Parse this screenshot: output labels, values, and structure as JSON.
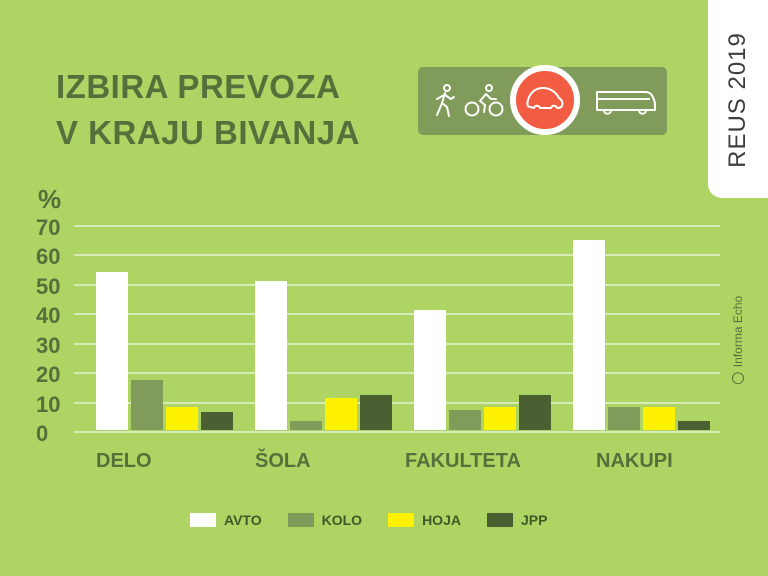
{
  "title": {
    "line1": "IZBIRA PREVOZA",
    "line2": "V KRAJU BIVANJA"
  },
  "header_icons": [
    "walking-icon",
    "bicycle-icon",
    "car-icon",
    "bus-icon"
  ],
  "badge": {
    "text": "REUS 2019"
  },
  "brand": {
    "text": "Informa Echo"
  },
  "axis": {
    "unit": "%",
    "ticks": [
      "70",
      "60",
      "50",
      "40",
      "30",
      "20",
      "10",
      "0"
    ]
  },
  "colors": {
    "background": "#aed563",
    "AVTO": "#ffffff",
    "KOLO": "#809b5a",
    "HOJA": "#fff200",
    "JPP": "#4a5f32",
    "highlight": "#f25c42"
  },
  "chart_data": {
    "type": "bar",
    "title": "IZBIRA PREVOZA V KRAJU BIVANJA",
    "xlabel": "",
    "ylabel": "%",
    "ylim": [
      0,
      70
    ],
    "grid": true,
    "legend_position": "bottom",
    "categories": [
      "DELO",
      "ŠOLA",
      "FAKULTETA",
      "NAKUPI"
    ],
    "series": [
      {
        "name": "AVTO",
        "color": "#ffffff",
        "values": [
          54,
          51,
          41,
          65
        ]
      },
      {
        "name": "KOLO",
        "color": "#809b5a",
        "values": [
          17,
          3,
          7,
          8
        ]
      },
      {
        "name": "HOJA",
        "color": "#fff200",
        "values": [
          8,
          11,
          8,
          8
        ]
      },
      {
        "name": "JPP",
        "color": "#4a5f32",
        "values": [
          6,
          12,
          12,
          3
        ]
      }
    ]
  }
}
